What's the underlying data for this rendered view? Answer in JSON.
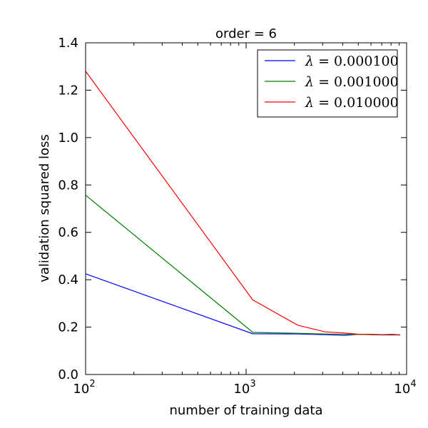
{
  "chart_data": {
    "type": "line",
    "title": "order = 6",
    "xlabel": "number of training data",
    "ylabel": "validation squared loss",
    "xscale": "log",
    "xlim": [
      100,
      10000
    ],
    "ylim": [
      0.0,
      1.4
    ],
    "xtick_labels": [
      {
        "base": "10",
        "exp": "2",
        "value": 100
      },
      {
        "base": "10",
        "exp": "3",
        "value": 1000
      },
      {
        "base": "10",
        "exp": "4",
        "value": 10000
      }
    ],
    "yticks": [
      0.0,
      0.2,
      0.4,
      0.6,
      0.8,
      1.0,
      1.2,
      1.4
    ],
    "ytick_labels": [
      "0.0",
      "0.2",
      "0.4",
      "0.6",
      "0.8",
      "1.0",
      "1.2",
      "1.4"
    ],
    "grid": false,
    "legend_position": "top-right",
    "series": [
      {
        "name": "λ = 0.000100",
        "lambda_symbol": "λ",
        "lambda_value": "= 0.000100",
        "color": "#0000ff",
        "x": [
          100,
          1100,
          2100,
          3100,
          4100,
          5100,
          6100,
          7100,
          8100,
          9100
        ],
        "y": [
          0.425,
          0.172,
          0.171,
          0.168,
          0.165,
          0.17,
          0.168,
          0.167,
          0.167,
          0.167
        ]
      },
      {
        "name": "λ = 0.001000",
        "lambda_symbol": "λ",
        "lambda_value": "= 0.001000",
        "color": "#008000",
        "x": [
          100,
          1100,
          2100,
          3100,
          4100,
          5100,
          6100,
          7100,
          8100,
          9100
        ],
        "y": [
          0.757,
          0.178,
          0.174,
          0.171,
          0.17,
          0.169,
          0.168,
          0.168,
          0.168,
          0.167
        ]
      },
      {
        "name": "λ = 0.010000",
        "lambda_symbol": "λ",
        "lambda_value": "= 0.010000",
        "color": "#ff0000",
        "x": [
          100,
          1100,
          2100,
          3100,
          4100,
          5100,
          6100,
          7100,
          8100,
          9100
        ],
        "y": [
          1.28,
          0.315,
          0.208,
          0.18,
          0.175,
          0.17,
          0.17,
          0.168,
          0.17,
          0.167
        ]
      }
    ]
  }
}
